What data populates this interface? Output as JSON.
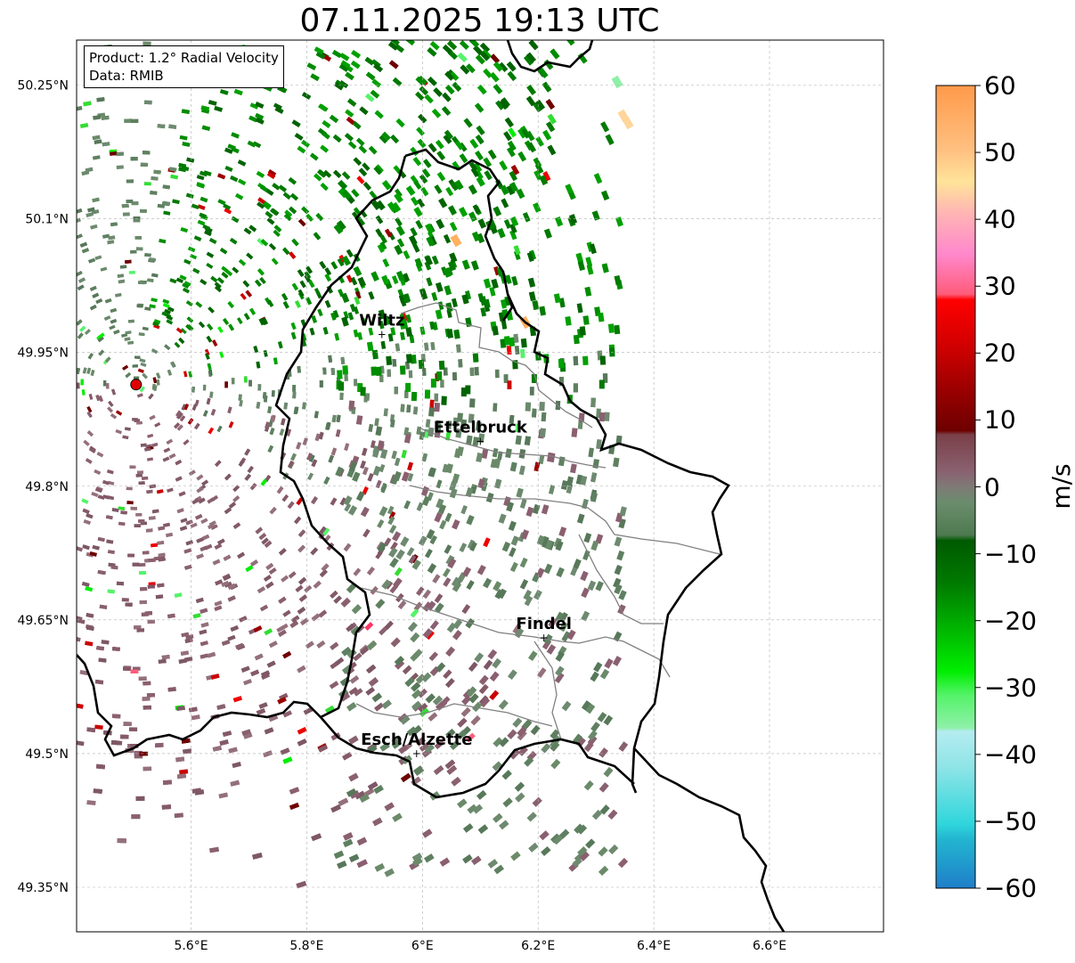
{
  "title": "07.11.2025 19:13 UTC",
  "infobox": {
    "product": "Product: 1.2° Radial Velocity",
    "data": "Data: RMIB"
  },
  "axes": {
    "lon_ticks": [
      "5.6°E",
      "5.8°E",
      "6°E",
      "6.2°E",
      "6.4°E",
      "6.6°E"
    ],
    "lon_values": [
      5.6,
      5.8,
      6.0,
      6.2,
      6.4,
      6.6
    ],
    "lat_ticks": [
      "50.25°N",
      "50.1°N",
      "49.95°N",
      "49.8°N",
      "49.65°N",
      "49.5°N",
      "49.35°N"
    ],
    "lat_values": [
      50.25,
      50.1,
      49.95,
      49.8,
      49.65,
      49.5,
      49.35
    ],
    "lon_range": [
      5.4,
      6.8
    ],
    "lat_range": [
      49.3,
      50.3
    ],
    "grid": true
  },
  "radar": {
    "lon": 5.505,
    "lat": 49.914,
    "color": "#e00000"
  },
  "cities": [
    {
      "name": "Wiltz",
      "lon": 5.93,
      "lat": 49.97
    },
    {
      "name": "Ettelbruck",
      "lon": 6.1,
      "lat": 49.85
    },
    {
      "name": "Findel",
      "lon": 6.21,
      "lat": 49.63
    },
    {
      "name": "Esch/Alzette",
      "lon": 5.99,
      "lat": 49.5
    }
  ],
  "colorbar": {
    "unit": "m/s",
    "ticks": [
      "60",
      "50",
      "40",
      "30",
      "20",
      "10",
      "0",
      "−10",
      "−20",
      "−30",
      "−40",
      "−50",
      "−60"
    ],
    "tick_values": [
      60,
      50,
      40,
      30,
      20,
      10,
      0,
      -10,
      -20,
      -30,
      -40,
      -50,
      -60
    ],
    "range": [
      -60,
      60
    ],
    "colors": {
      "toward_strong": "#1f7fc9",
      "toward_cyan": "#2fd6dc",
      "toward_lightcyan": "#b4ecf0",
      "toward_lightgreen": "#8ef0a8",
      "toward_green": "#00ee00",
      "toward_darkgreen": "#006400",
      "near_zero_neg": "#5e8060",
      "near_zero_pos": "#8a6070",
      "away_darkred": "#6e0000",
      "away_red": "#ee0000",
      "away_pink": "#ff5c7a",
      "away_lightpink": "#ff99cc",
      "away_peach": "#ffd59a",
      "away_orange": "#ff9a4a"
    }
  }
}
